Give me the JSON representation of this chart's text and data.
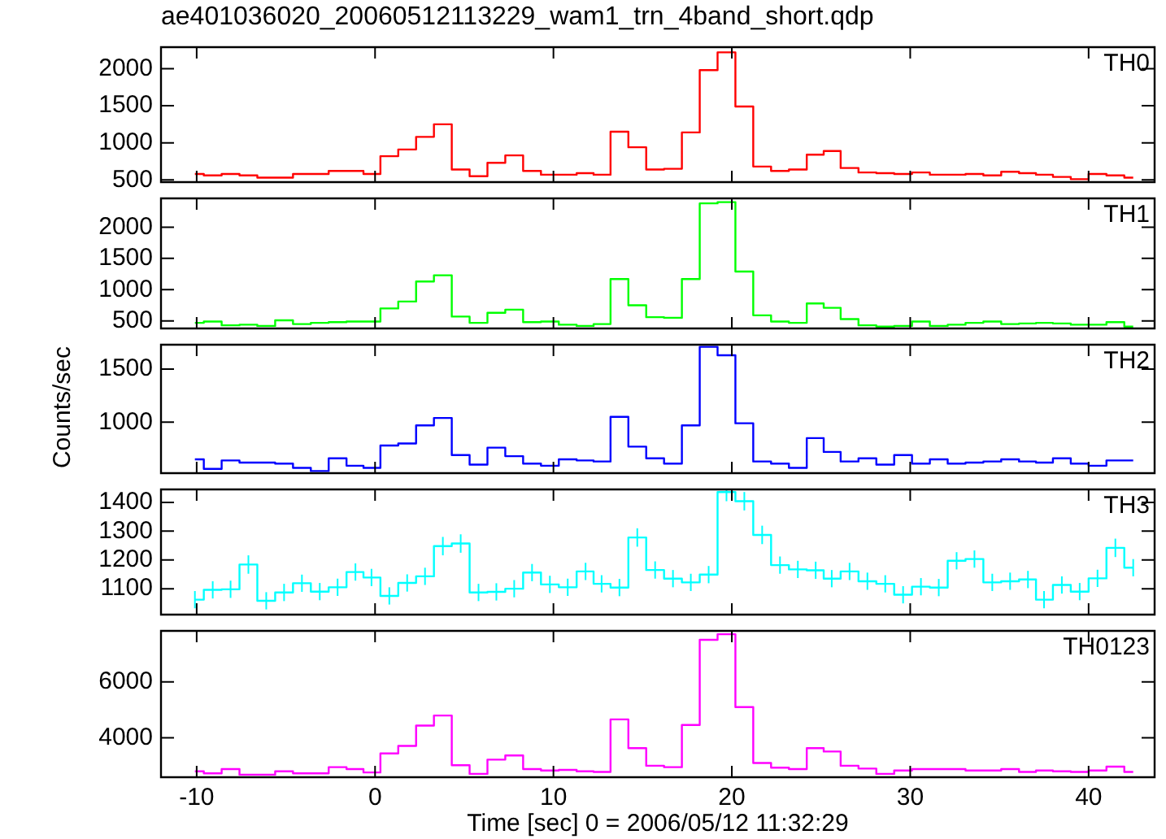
{
  "chart_data": [
    {
      "type": "step",
      "title": "ae401036020_20060512113229_wam1_trn_4band_short.qdp",
      "tick_labels": "y",
      "xlim": [
        -12,
        43.7
      ],
      "xticks": [
        -10,
        0,
        10,
        20,
        30,
        40
      ],
      "ylim": [
        470,
        2290
      ],
      "yticks": [
        500,
        1000,
        1500,
        2000
      ],
      "x": [
        -10.1,
        -9.1,
        -8.1,
        -7.1,
        -6.1,
        -5.1,
        -4.1,
        -3.1,
        -2.1,
        -1.1,
        -0.2,
        0.8,
        1.8,
        2.8,
        3.8,
        4.8,
        5.8,
        6.8,
        7.8,
        8.8,
        9.8,
        10.8,
        11.8,
        12.7,
        13.7,
        14.7,
        15.7,
        16.7,
        17.7,
        18.7,
        19.7,
        20.7,
        21.7,
        22.7,
        23.7,
        24.7,
        25.6,
        26.6,
        27.6,
        28.6,
        29.6,
        30.6,
        31.6,
        32.6,
        33.6,
        34.6,
        35.6,
        36.6,
        37.5,
        38.5,
        39.5,
        40.5,
        41.5,
        42.5
      ],
      "series": [
        {
          "name": "TH0",
          "color": "#ff0000",
          "values": [
            580,
            560,
            580,
            560,
            530,
            530,
            580,
            580,
            620,
            620,
            580,
            820,
            910,
            1080,
            1250,
            640,
            550,
            730,
            830,
            620,
            570,
            570,
            590,
            570,
            1150,
            940,
            640,
            650,
            1140,
            1980,
            2220,
            1490,
            680,
            620,
            640,
            840,
            890,
            660,
            600,
            590,
            580,
            600,
            570,
            570,
            580,
            560,
            610,
            590,
            570,
            540,
            510,
            580,
            560,
            530
          ]
        }
      ]
    },
    {
      "type": "step",
      "tick_labels": "y",
      "xlim": [
        -12,
        43.7
      ],
      "xticks": [
        -10,
        0,
        10,
        20,
        30,
        40
      ],
      "ylim": [
        380,
        2460
      ],
      "yticks": [
        500,
        1000,
        1500,
        2000
      ],
      "x": [
        -10.1,
        -9.1,
        -8.1,
        -7.1,
        -6.1,
        -5.1,
        -4.1,
        -3.1,
        -2.1,
        -1.1,
        -0.2,
        0.8,
        1.8,
        2.8,
        3.8,
        4.8,
        5.8,
        6.8,
        7.8,
        8.8,
        9.8,
        10.8,
        11.8,
        12.7,
        13.7,
        14.7,
        15.7,
        16.7,
        17.7,
        18.7,
        19.7,
        20.7,
        21.7,
        22.7,
        23.7,
        24.7,
        25.6,
        26.6,
        27.6,
        28.6,
        29.6,
        30.6,
        31.6,
        32.6,
        33.6,
        34.6,
        35.6,
        36.6,
        37.5,
        38.5,
        39.5,
        40.5,
        41.5,
        42.5
      ],
      "series": [
        {
          "name": "TH1",
          "color": "#00ff00",
          "values": [
            470,
            490,
            430,
            440,
            420,
            510,
            450,
            470,
            480,
            490,
            490,
            700,
            810,
            1130,
            1230,
            570,
            470,
            630,
            680,
            480,
            490,
            440,
            420,
            450,
            1170,
            750,
            560,
            550,
            1170,
            2380,
            2400,
            1290,
            590,
            490,
            470,
            780,
            710,
            530,
            430,
            410,
            420,
            490,
            420,
            440,
            470,
            490,
            450,
            460,
            470,
            460,
            440,
            440,
            480,
            410
          ]
        }
      ]
    },
    {
      "type": "step",
      "ylabel": "Counts/sec",
      "tick_labels": "y",
      "xlim": [
        -12,
        43.7
      ],
      "xticks": [
        -10,
        0,
        10,
        20,
        30,
        40
      ],
      "ylim": [
        520,
        1730
      ],
      "yticks": [
        1000,
        1500
      ],
      "x": [
        -10.1,
        -9.1,
        -8.1,
        -7.1,
        -6.1,
        -5.1,
        -4.1,
        -3.1,
        -2.1,
        -1.1,
        -0.2,
        0.8,
        1.8,
        2.8,
        3.8,
        4.8,
        5.8,
        6.8,
        7.8,
        8.8,
        9.8,
        10.8,
        11.8,
        12.7,
        13.7,
        14.7,
        15.7,
        16.7,
        17.7,
        18.7,
        19.7,
        20.7,
        21.7,
        22.7,
        23.7,
        24.7,
        25.6,
        26.6,
        27.6,
        28.6,
        29.6,
        30.6,
        31.6,
        32.6,
        33.6,
        34.6,
        35.6,
        36.6,
        37.5,
        38.5,
        39.5,
        40.5,
        41.5,
        42.5
      ],
      "series": [
        {
          "name": "TH2",
          "color": "#0000ff",
          "values": [
            650,
            560,
            640,
            620,
            620,
            610,
            570,
            540,
            660,
            590,
            570,
            780,
            800,
            970,
            1040,
            690,
            600,
            760,
            680,
            610,
            590,
            650,
            640,
            630,
            1050,
            770,
            660,
            610,
            970,
            1710,
            1630,
            990,
            630,
            610,
            570,
            850,
            720,
            630,
            660,
            600,
            690,
            610,
            650,
            610,
            620,
            630,
            650,
            630,
            620,
            660,
            610,
            590,
            640,
            640
          ]
        }
      ]
    },
    {
      "type": "step",
      "tick_labels": "y",
      "xlim": [
        -12,
        43.7
      ],
      "xticks": [
        -10,
        0,
        10,
        20,
        30,
        40
      ],
      "ylim": [
        1010,
        1445
      ],
      "yticks": [
        1100,
        1200,
        1300,
        1400
      ],
      "x": [
        -10.1,
        -9.1,
        -8.1,
        -7.1,
        -6.1,
        -5.1,
        -4.1,
        -3.1,
        -2.1,
        -1.1,
        -0.2,
        0.8,
        1.8,
        2.8,
        3.8,
        4.8,
        5.8,
        6.8,
        7.8,
        8.8,
        9.8,
        10.8,
        11.8,
        12.7,
        13.7,
        14.7,
        15.7,
        16.7,
        17.7,
        18.7,
        19.7,
        20.7,
        21.7,
        22.7,
        23.7,
        24.7,
        25.6,
        26.6,
        27.6,
        28.6,
        29.6,
        30.6,
        31.6,
        32.6,
        33.6,
        34.6,
        35.6,
        36.6,
        37.5,
        38.5,
        39.5,
        40.5,
        41.5,
        42.5
      ],
      "series": [
        {
          "name": "TH3",
          "color": "#00ffff",
          "values": [
            1062,
            1096,
            1098,
            1184,
            1058,
            1087,
            1119,
            1090,
            1105,
            1158,
            1139,
            1075,
            1120,
            1143,
            1248,
            1257,
            1087,
            1089,
            1100,
            1156,
            1115,
            1105,
            1160,
            1117,
            1104,
            1278,
            1165,
            1135,
            1122,
            1149,
            1436,
            1404,
            1287,
            1182,
            1167,
            1164,
            1135,
            1160,
            1126,
            1117,
            1079,
            1107,
            1104,
            1197,
            1203,
            1122,
            1126,
            1132,
            1062,
            1113,
            1090,
            1136,
            1242,
            1173
          ],
          "errors": [
            30,
            30,
            30,
            32,
            30,
            30,
            30,
            30,
            30,
            30,
            30,
            30,
            30,
            30,
            32,
            32,
            30,
            30,
            30,
            30,
            30,
            30,
            30,
            30,
            30,
            32,
            30,
            30,
            30,
            30,
            32,
            32,
            32,
            30,
            30,
            30,
            30,
            30,
            30,
            30,
            30,
            30,
            30,
            30,
            30,
            30,
            30,
            30,
            30,
            30,
            30,
            30,
            32,
            30
          ]
        }
      ]
    },
    {
      "type": "step",
      "xlabel": "Time [sec] 0 = 2006/05/12 11:32:29",
      "xlim": [
        -12,
        43.7
      ],
      "xticks": [
        -10,
        0,
        10,
        20,
        30,
        40
      ],
      "ylim": [
        2590,
        7830
      ],
      "yticks": [
        4000,
        6000
      ],
      "x": [
        -10.1,
        -9.1,
        -8.1,
        -7.1,
        -6.1,
        -5.1,
        -4.1,
        -3.1,
        -2.1,
        -1.1,
        -0.2,
        0.8,
        1.8,
        2.8,
        3.8,
        4.8,
        5.8,
        6.8,
        7.8,
        8.8,
        9.8,
        10.8,
        11.8,
        12.7,
        13.7,
        14.7,
        15.7,
        16.7,
        17.7,
        18.7,
        19.7,
        20.7,
        21.7,
        22.7,
        23.7,
        24.7,
        25.6,
        26.6,
        27.6,
        28.6,
        29.6,
        30.6,
        31.6,
        32.6,
        33.6,
        34.6,
        35.6,
        36.6,
        37.5,
        38.5,
        39.5,
        40.5,
        41.5,
        42.5
      ],
      "series": [
        {
          "name": "TH0123",
          "color": "#ff00ff",
          "values": [
            2800,
            2730,
            2880,
            2680,
            2680,
            2800,
            2730,
            2730,
            2950,
            2880,
            2760,
            3440,
            3710,
            4440,
            4800,
            3020,
            2710,
            3220,
            3370,
            2880,
            2830,
            2850,
            2800,
            2780,
            4660,
            3630,
            3000,
            2950,
            4460,
            7510,
            7710,
            5100,
            3100,
            2930,
            2880,
            3630,
            3510,
            3000,
            2900,
            2710,
            2830,
            2880,
            2880,
            2880,
            2830,
            2830,
            2880,
            2780,
            2830,
            2800,
            2780,
            2830,
            2970,
            2780
          ]
        }
      ]
    }
  ]
}
